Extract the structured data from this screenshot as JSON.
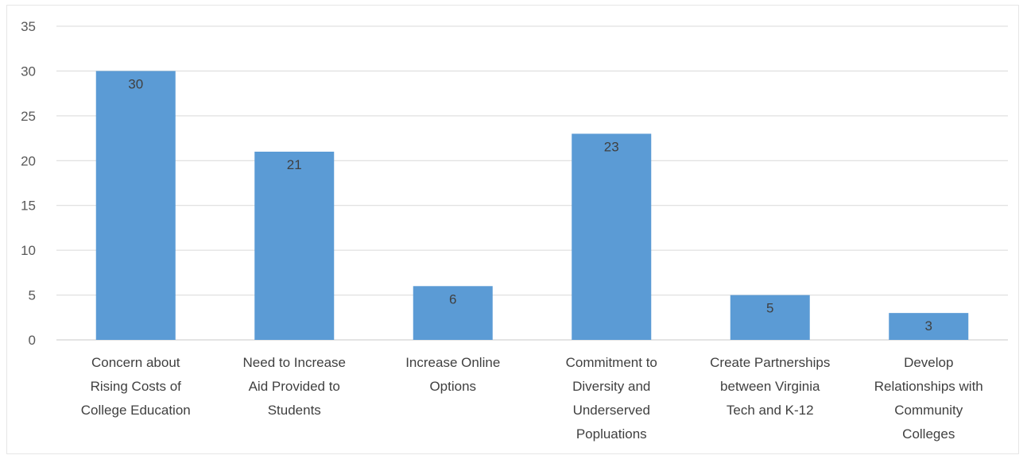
{
  "chart_data": {
    "type": "bar",
    "title": "",
    "xlabel": "",
    "ylabel": "",
    "ylim": [
      0,
      35
    ],
    "yticks": [
      0,
      5,
      10,
      15,
      20,
      25,
      30,
      35
    ],
    "grid": true,
    "legend": "none",
    "bar_color": "#5b9bd5",
    "categories": [
      [
        "Concern about",
        "Rising Costs of",
        "College Education"
      ],
      [
        "Need to Increase",
        "Aid Provided to",
        "Students"
      ],
      [
        "Increase Online",
        "Options"
      ],
      [
        "Commitment to",
        "Diversity and",
        "Underserved",
        "Popluations"
      ],
      [
        "Create Partnerships",
        "between Virginia",
        "Tech and K-12"
      ],
      [
        "Develop",
        "Relationships with",
        "Community",
        "Colleges"
      ]
    ],
    "values": [
      30,
      21,
      6,
      23,
      5,
      3
    ]
  }
}
